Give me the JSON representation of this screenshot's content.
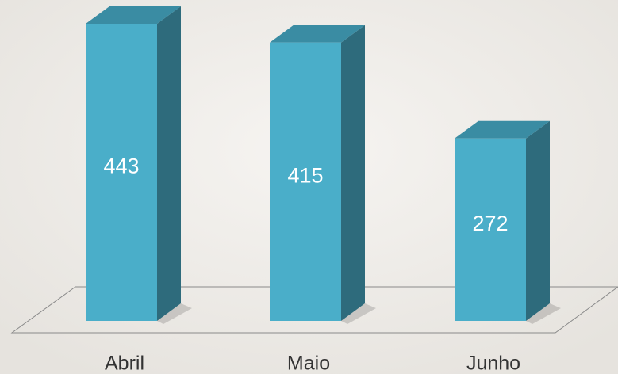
{
  "chart_data": {
    "type": "bar",
    "categories": [
      "Abril",
      "Maio",
      "Junho"
    ],
    "values": [
      443,
      415,
      272
    ],
    "color": "#4aaec9"
  }
}
